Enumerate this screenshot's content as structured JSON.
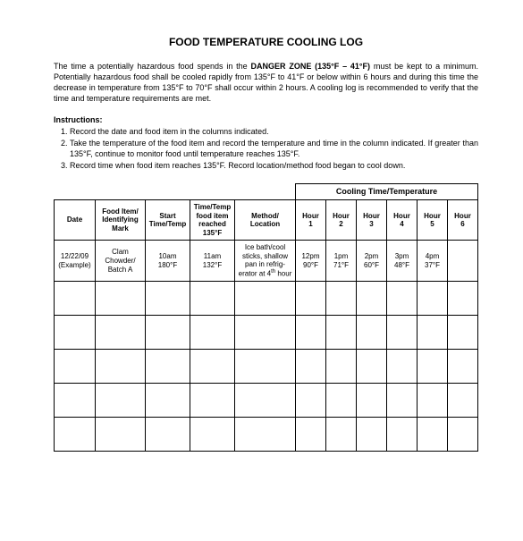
{
  "title": "FOOD TEMPERATURE COOLING LOG",
  "intro": {
    "p1a": "The time a potentially hazardous food spends in the ",
    "danger": "DANGER ZONE (135°F – 41°F)",
    "p1b": " must be kept to a minimum. Potentially hazardous food shall be cooled rapidly from 135°F to 41°F or below within 6 hours and during this time the decrease in temperature from 135°F to 70°F shall occur within 2 hours. A cooling log is recommended to verify that the time and temperature requirements are met."
  },
  "instructions_label": "Instructions:",
  "instructions": [
    "Record the date and food item in the columns indicated.",
    "Take the temperature of the food item and record the temperature and time in the column indicated. If greater than 135°F, continue to monitor food until temperature reaches 135°F.",
    "Record time when food item reaches 135°F. Record location/method food began to cool down."
  ],
  "headers": {
    "group": "Cooling Time/Temperature",
    "date": "Date",
    "food": "Food Item/\nIdentifying\nMark",
    "start": "Start\nTime/Temp",
    "reach": "Time/Temp\nfood item\nreached\n135°F",
    "method": "Method/\nLocation",
    "h1": "Hour\n1",
    "h2": "Hour\n2",
    "h3": "Hour\n3",
    "h4": "Hour\n4",
    "h5": "Hour\n5",
    "h6": "Hour\n6"
  },
  "row": {
    "date": "12/22/09\n(Example)",
    "food": "Clam\nChowder/\nBatch A",
    "start": "10am\n180°F",
    "reach": "11am\n132°F",
    "method_l1": "Ice bath/cool",
    "method_l2": "sticks, shallow",
    "method_l3": "pan in refrig-",
    "method_l4a": "erator at 4",
    "method_l4b": " hour",
    "h1": "12pm\n90°F",
    "h2": "1pm\n71°F",
    "h3": "2pm\n60°F",
    "h4": "3pm\n48°F",
    "h5": "4pm\n37°F",
    "h6": ""
  },
  "emptyRows": 5
}
